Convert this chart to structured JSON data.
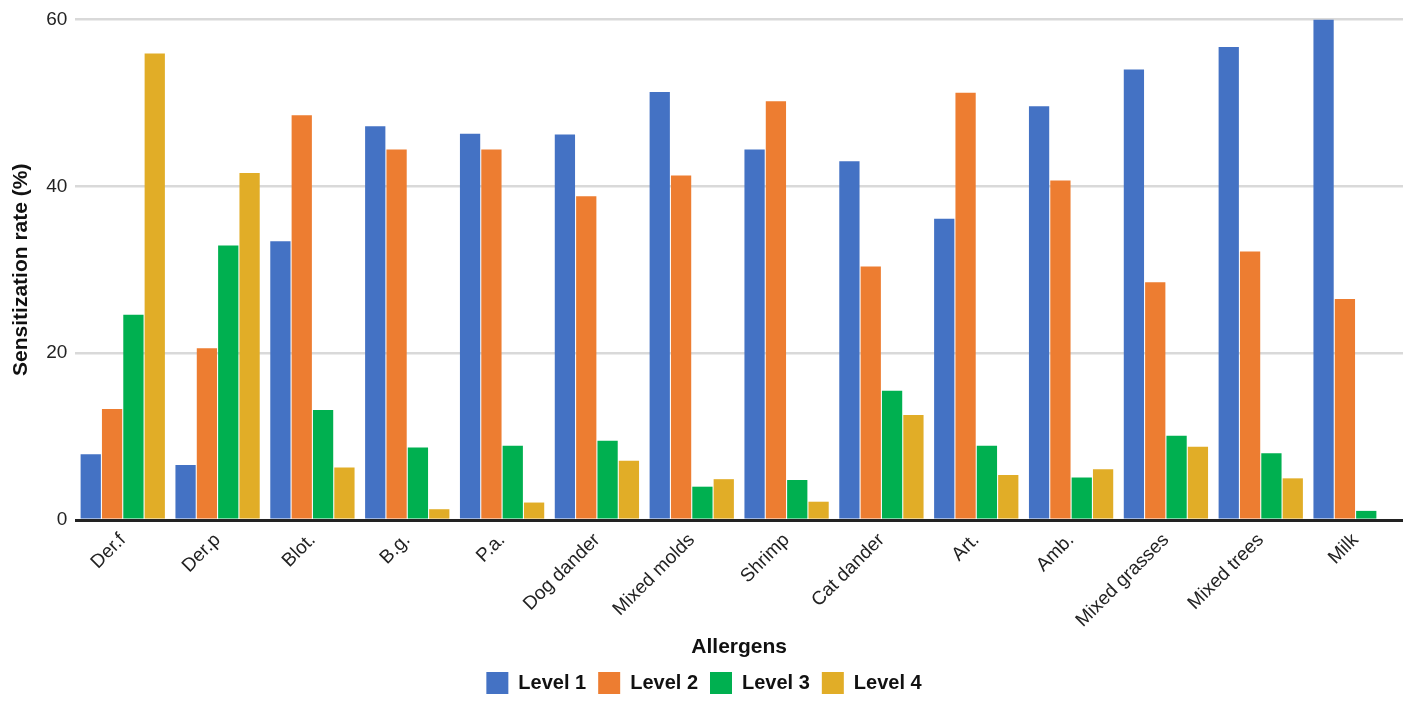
{
  "chart_data": {
    "type": "bar",
    "xlabel": "Allergens",
    "ylabel": "Sensitization rate (%)",
    "categories": [
      "Der.f",
      "Der.p",
      "Blot.",
      "B.g.",
      "P.a.",
      "Dog dander",
      "Mixed molds",
      "Shrimp",
      "Cat dander",
      "Art.",
      "Amb.",
      "Mixed grasses",
      "Mixed trees",
      "Milk"
    ],
    "series": [
      {
        "name": "Level 1",
        "color": "#4472c4",
        "values": [
          7.9,
          6.6,
          33.4,
          47.2,
          46.3,
          46.2,
          51.3,
          44.4,
          43.0,
          36.1,
          49.6,
          54.0,
          56.7,
          60
        ]
      },
      {
        "name": "Level 2",
        "color": "#ed7d31",
        "values": [
          13.3,
          20.6,
          48.5,
          44.4,
          44.4,
          38.8,
          41.3,
          50.2,
          30.4,
          51.2,
          40.7,
          28.5,
          32.2,
          26.5
        ]
      },
      {
        "name": "Level 3",
        "color": "#00b050",
        "values": [
          24.6,
          32.9,
          13.2,
          8.7,
          8.9,
          9.5,
          4.0,
          4.8,
          15.5,
          8.9,
          5.1,
          10.1,
          8.0,
          1.1
        ]
      },
      {
        "name": "Level 4",
        "color": "#e1ad27",
        "values": [
          55.9,
          41.6,
          6.3,
          1.3,
          2.1,
          7.1,
          4.9,
          2.2,
          12.6,
          5.4,
          6.1,
          8.8,
          5.0,
          0
        ]
      }
    ],
    "ylim": [
      0,
      60
    ],
    "yticks": [
      0,
      20,
      40,
      60
    ],
    "grid": "y",
    "legend": "bottom"
  }
}
